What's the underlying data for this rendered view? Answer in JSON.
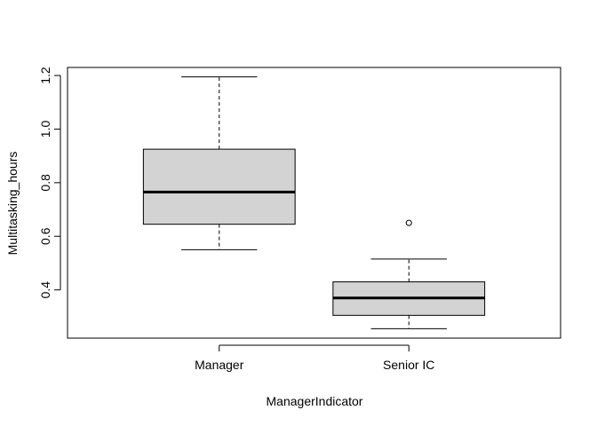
{
  "chart_data": {
    "type": "boxplot",
    "title": "",
    "xlabel": "ManagerIndicator",
    "ylabel": "Multitasking_hours",
    "ylim": [
      0.22,
      1.23
    ],
    "y_ticks": [
      0.4,
      0.6,
      0.8,
      1.0,
      1.2
    ],
    "y_tick_labels": [
      "0.4",
      "0.6",
      "0.8",
      "1.0",
      "1.2"
    ],
    "grid": false,
    "legend": "none",
    "box_fill": "#d3d3d3",
    "categories": [
      "Manager",
      "Senior IC"
    ],
    "boxes": [
      {
        "category": "Manager",
        "whisker_low": 0.55,
        "q1": 0.645,
        "median": 0.765,
        "q3": 0.925,
        "whisker_high": 1.195,
        "outliers": []
      },
      {
        "category": "Senior IC",
        "whisker_low": 0.255,
        "q1": 0.305,
        "median": 0.37,
        "q3": 0.43,
        "whisker_high": 0.515,
        "outliers": [
          0.65
        ]
      }
    ]
  }
}
